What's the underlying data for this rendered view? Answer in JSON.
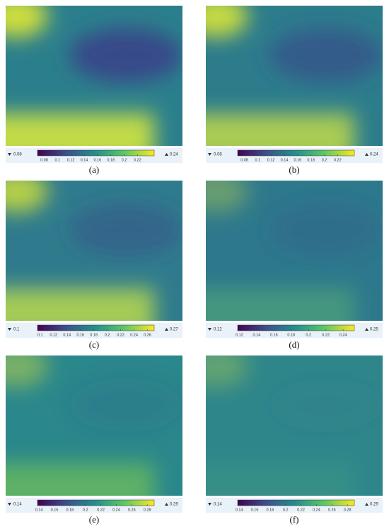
{
  "chart_data": [
    {
      "type": "heatmap",
      "caption": "(a)",
      "vmin": 0.08,
      "vmax": 0.24,
      "xlim": [
        0.07,
        0.245
      ],
      "xticks": [
        0.08,
        0.1,
        0.12,
        0.14,
        0.16,
        0.18,
        0.2,
        0.22
      ]
    },
    {
      "type": "heatmap",
      "caption": "(b)",
      "vmin": 0.08,
      "vmax": 0.24,
      "xlim": [
        0.07,
        0.245
      ],
      "xticks": [
        0.08,
        0.1,
        0.12,
        0.14,
        0.16,
        0.18,
        0.2,
        0.22
      ]
    },
    {
      "type": "heatmap",
      "caption": "(c)",
      "vmin": 0.1,
      "vmax": 0.27,
      "xlim": [
        0.096,
        0.27
      ],
      "xticks": [
        0.1,
        0.12,
        0.14,
        0.16,
        0.18,
        0.2,
        0.22,
        0.24,
        0.26
      ]
    },
    {
      "type": "heatmap",
      "caption": "(d)",
      "vmin": 0.12,
      "vmax": 0.25,
      "xlim": [
        0.118,
        0.253
      ],
      "xticks": [
        0.12,
        0.14,
        0.16,
        0.18,
        0.2,
        0.22,
        0.24
      ]
    },
    {
      "type": "heatmap",
      "caption": "(e)",
      "vmin": 0.14,
      "vmax": 0.29,
      "xlim": [
        0.138,
        0.289
      ],
      "xticks": [
        0.14,
        0.16,
        0.18,
        0.2,
        0.22,
        0.24,
        0.26,
        0.28
      ]
    },
    {
      "type": "heatmap",
      "caption": "(f)",
      "vmin": 0.14,
      "vmax": 0.29,
      "xlim": [
        0.138,
        0.289
      ],
      "xticks": [
        0.14,
        0.16,
        0.18,
        0.2,
        0.22,
        0.24,
        0.26,
        0.28
      ]
    }
  ]
}
